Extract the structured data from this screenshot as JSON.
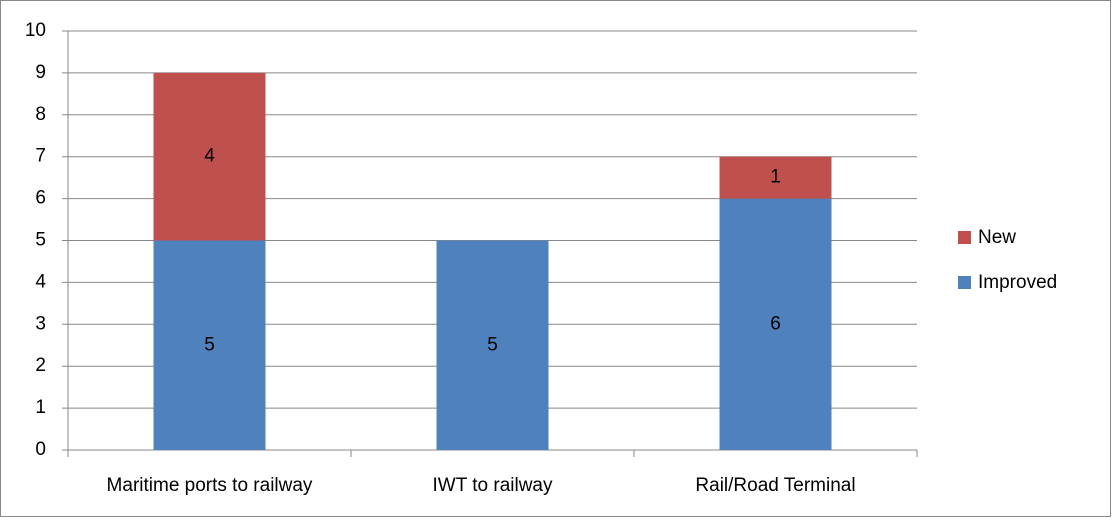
{
  "chart_data": {
    "type": "stacked_bar",
    "categories": [
      "Maritime ports to railway",
      "IWT to railway",
      "Rail/Road Terminal"
    ],
    "series": [
      {
        "name": "Improved",
        "color": "#4f81bd",
        "values": [
          5,
          5,
          6
        ]
      },
      {
        "name": "New",
        "color": "#c0504d",
        "values": [
          4,
          null,
          1
        ]
      }
    ],
    "ylim": [
      0,
      10
    ],
    "yticks": [
      0,
      1,
      2,
      3,
      4,
      5,
      6,
      7,
      8,
      9,
      10
    ],
    "grid": true,
    "legend": "right",
    "data_labels": true
  }
}
